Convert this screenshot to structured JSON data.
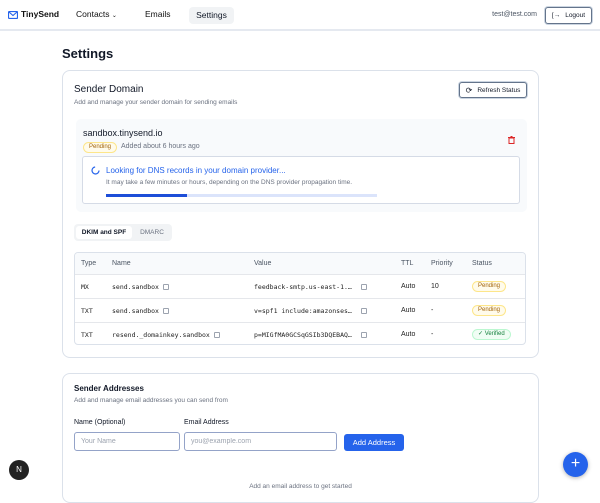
{
  "header": {
    "brand": "TinySend",
    "nav": [
      {
        "label": "Contacts"
      },
      {
        "label": "Emails"
      },
      {
        "label": "Settings"
      }
    ],
    "user_email": "test@test.com",
    "logout_label": "Logout"
  },
  "page": {
    "title": "Settings"
  },
  "domain_card": {
    "title": "Sender Domain",
    "subtitle": "Add and manage your sender domain for sending emails",
    "refresh_label": "Refresh Status",
    "domain": {
      "name": "sandbox.tinysend.io",
      "status": "Pending",
      "added": "Added about 6 hours ago"
    },
    "dns_check": {
      "title": "Looking for DNS records in your domain provider...",
      "description": "It may take a few minutes or hours, depending on the DNS provider propagation time.",
      "progress_percent": 30
    },
    "tabs": [
      {
        "label": "DKIM and SPF",
        "active": true
      },
      {
        "label": "DMARC",
        "active": false
      }
    ],
    "table": {
      "columns": [
        "Type",
        "Name",
        "Value",
        "TTL",
        "Priority",
        "Status"
      ],
      "rows": [
        {
          "type": "MX",
          "name": "send.sandbox",
          "value": "feedback-smtp.us-east-1.…",
          "ttl": "Auto",
          "priority": "10",
          "status": "Pending"
        },
        {
          "type": "TXT",
          "name": "send.sandbox",
          "value": "v=spf1 include:amazonses…",
          "ttl": "Auto",
          "priority": "-",
          "status": "Pending"
        },
        {
          "type": "TXT",
          "name": "resend._domainkey.sandbox",
          "value": "p=MIGfMA0GCSqGSIb3DQEBAQ…",
          "ttl": "Auto",
          "priority": "-",
          "status": "✓ Verified"
        }
      ]
    }
  },
  "address_card": {
    "title": "Sender Addresses",
    "subtitle": "Add and manage email addresses you can send from",
    "name_label": "Name (Optional)",
    "name_placeholder": "Your Name",
    "email_label": "Email Address",
    "email_placeholder": "you@example.com",
    "add_label": "Add Address",
    "empty": "Add an email address to get started"
  },
  "colors": {
    "accent": "#2563eb",
    "danger": "#dc2626"
  }
}
